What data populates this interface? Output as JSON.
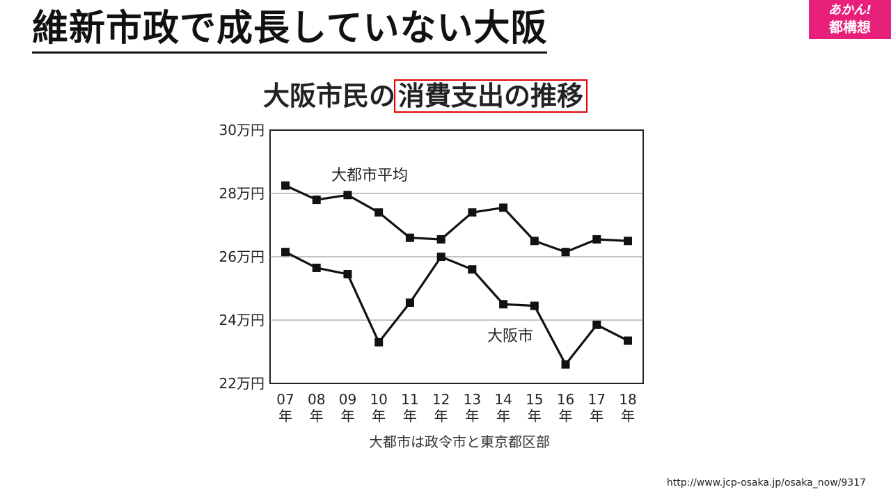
{
  "header": {
    "title": "維新市政で成長していない大阪",
    "badge_line1": "あかん!",
    "badge_line2": "都構想"
  },
  "chart_title": {
    "prefix": "大阪市民の",
    "highlight": "消費支出の推移"
  },
  "source_url": "http://www.jcp-osaka.jp/osaka_now/9317",
  "colors": {
    "badge_bg": "#e8207a",
    "highlight_box": "#e00000",
    "line": "#111111"
  },
  "chart_data": {
    "type": "line",
    "title": "大阪市民の消費支出の推移",
    "note": "大都市は政令市と東京都区部",
    "categories": [
      "07",
      "08",
      "09",
      "10",
      "11",
      "12",
      "13",
      "14",
      "15",
      "16",
      "17",
      "18"
    ],
    "category_suffix": "年",
    "y_unit": "万円",
    "ylim": [
      22,
      30
    ],
    "yticks": [
      22,
      24,
      26,
      28,
      30
    ],
    "grid": "horizontal",
    "series": [
      {
        "name": "大都市平均",
        "values": [
          28.25,
          27.8,
          27.95,
          27.4,
          26.6,
          26.55,
          27.4,
          27.55,
          26.5,
          26.15,
          26.55,
          26.5
        ]
      },
      {
        "name": "大阪市",
        "values": [
          26.15,
          25.65,
          25.45,
          23.3,
          24.55,
          26.0,
          25.6,
          24.5,
          24.45,
          22.6,
          23.85,
          23.35
        ]
      }
    ]
  }
}
